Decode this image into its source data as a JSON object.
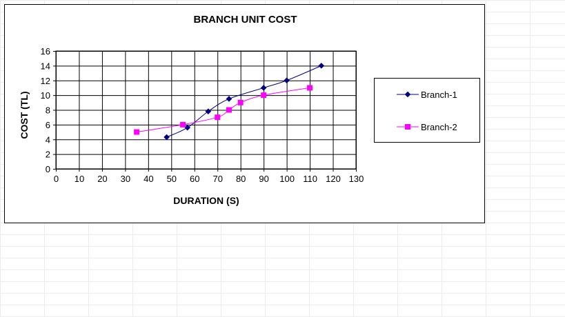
{
  "chart_data": {
    "type": "line",
    "title": "BRANCH UNIT COST",
    "xlabel": "DURATION (S)",
    "ylabel": "COST (TL)",
    "xlim": [
      0,
      130
    ],
    "ylim": [
      0,
      16
    ],
    "xticks": [
      0,
      10,
      20,
      30,
      40,
      50,
      60,
      70,
      80,
      90,
      100,
      110,
      120,
      130
    ],
    "yticks": [
      0,
      2,
      4,
      6,
      8,
      10,
      12,
      14,
      16
    ],
    "grid": true,
    "smooth": true,
    "legend_position": "right",
    "series": [
      {
        "name": "Branch-1",
        "color": "#000080",
        "marker": "diamond",
        "points": [
          [
            48,
            4.3
          ],
          [
            57,
            5.6
          ],
          [
            66,
            7.8
          ],
          [
            75,
            9.5
          ],
          [
            90,
            11
          ],
          [
            100,
            12
          ],
          [
            115,
            14
          ]
        ]
      },
      {
        "name": "Branch-2",
        "color": "#ff00ff",
        "marker": "square",
        "points": [
          [
            35,
            5
          ],
          [
            55,
            6
          ],
          [
            70,
            7
          ],
          [
            75,
            8
          ],
          [
            80,
            9
          ],
          [
            90,
            10
          ],
          [
            110,
            11
          ]
        ]
      }
    ]
  }
}
